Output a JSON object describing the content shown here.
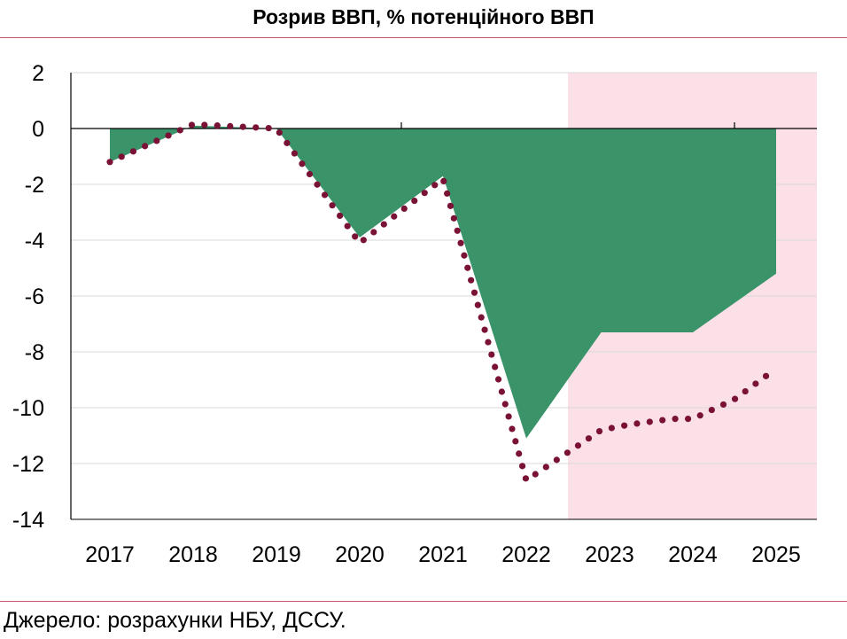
{
  "title": "Розрив ВВП, % потенційного ВВП",
  "source": "Джерело: розрахунки НБУ, ДССУ.",
  "colors": {
    "area": "#3a9369",
    "dotted": "#7a1236",
    "forecast_band": "#fbe0e8",
    "rule": "#c9546a"
  },
  "chart_data": {
    "type": "area",
    "title": "Розрив ВВП, % потенційного ВВП",
    "xlabel": "",
    "ylabel": "",
    "categories": [
      "2017",
      "2018",
      "2019",
      "2020",
      "2021",
      "2022",
      "2023",
      "2024",
      "2025"
    ],
    "ylim": [
      -14,
      2
    ],
    "yticks": [
      "2",
      "0",
      "-2",
      "-4",
      "-6",
      "-8",
      "-10",
      "-12",
      "-14"
    ],
    "forecast_start_year": 2022.5,
    "grid": true,
    "series": [
      {
        "style": "area",
        "x": [
          2017,
          2018,
          2019,
          2020,
          2021,
          2022,
          2022.9,
          2024,
          2025
        ],
        "values": [
          -1.2,
          0.1,
          0.0,
          -3.9,
          -1.7,
          -11.1,
          -7.3,
          -7.3,
          -5.2
        ]
      },
      {
        "style": "dotted-line",
        "x": [
          2017,
          2018,
          2019,
          2020,
          2021,
          2022,
          2022.5,
          2022.9,
          2023.25,
          2023.75,
          2024,
          2024.5,
          2025
        ],
        "values": [
          -1.2,
          0.15,
          0.0,
          -4.1,
          -1.8,
          -12.6,
          -11.6,
          -10.8,
          -10.6,
          -10.4,
          -10.4,
          -9.7,
          -8.6
        ]
      }
    ]
  }
}
